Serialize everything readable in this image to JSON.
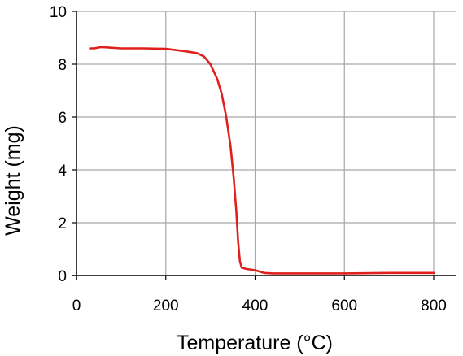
{
  "chart_data": {
    "type": "line",
    "title": "",
    "xlabel": "Temperature (°C)",
    "ylabel": "Weight (mg)",
    "xlim": [
      0,
      800
    ],
    "ylim": [
      0,
      10
    ],
    "x_ticks": [
      "0",
      "200",
      "400",
      "600",
      "800"
    ],
    "y_ticks": [
      "0",
      "2",
      "4",
      "6",
      "8",
      "10"
    ],
    "grid": true,
    "legend": "none",
    "series": [
      {
        "color": "#e0201c",
        "x": [
          30,
          40,
          55,
          100,
          150,
          200,
          240,
          270,
          285,
          300,
          315,
          325,
          335,
          345,
          352,
          358,
          362,
          366,
          370,
          380,
          400,
          420,
          440,
          500,
          600,
          700,
          800
        ],
        "y": [
          8.6,
          8.6,
          8.65,
          8.6,
          8.6,
          8.58,
          8.5,
          8.42,
          8.3,
          8.0,
          7.45,
          6.9,
          6.05,
          4.9,
          3.7,
          2.4,
          1.3,
          0.55,
          0.3,
          0.25,
          0.2,
          0.1,
          0.08,
          0.08,
          0.08,
          0.1,
          0.1
        ]
      }
    ]
  }
}
